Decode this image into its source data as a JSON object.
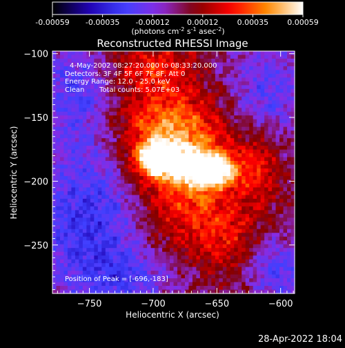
{
  "colorbar": {
    "tick_labels": [
      "-0.00059",
      "-0.00035",
      "-0.00012",
      "0.00012",
      "0.00035",
      "0.00059"
    ],
    "unit_main": "(photons cm",
    "unit_exp1": "-2",
    "unit_s": " s",
    "unit_exp2": "-1",
    "unit_asec": " asec",
    "unit_exp3": "-2",
    "unit_close": ")"
  },
  "annotations": {
    "time_range": "4-May-2002 08:27:20.000 to 08:33:20.000",
    "detectors": "Detectors: 3F 4F 5F 6F 7F 8F, Att 0",
    "energy": "Energy Range: 12.0 - 25.0 keV",
    "method": "Clean",
    "total_counts": "Total counts: 5.07E+03",
    "peak": "Position of Peak = [-696,-183]"
  },
  "timestamp": "28-Apr-2022 18:04",
  "chart_data": {
    "type": "heatmap",
    "title": "Reconstructed RHESSI Image",
    "xlabel": "Heliocentric X (arcsec)",
    "ylabel": "Heliocentric Y (arcsec)",
    "xlim": [
      -779,
      -589
    ],
    "ylim": [
      -288,
      -98
    ],
    "xticks": [
      -750,
      -700,
      -650,
      -600
    ],
    "yticks": [
      -100,
      -150,
      -200,
      -250
    ],
    "xtick_labels": [
      "−750",
      "−700",
      "−650",
      "−600"
    ],
    "ytick_labels": [
      "−100",
      "−150",
      "−200",
      "−250"
    ],
    "value_range": [
      -0.00059,
      0.00059
    ],
    "colormap": [
      "#000000",
      "#1f00b0",
      "#4040ff",
      "#8a2be2",
      "#800000",
      "#ff0000",
      "#ff8c00",
      "#ffffff"
    ],
    "peak": [
      -696,
      -183
    ],
    "sources": [
      {
        "x": -696,
        "y": -182,
        "amp": 0.00058,
        "sx": 12,
        "sy": 9
      },
      {
        "x": -655,
        "y": -191,
        "amp": 0.00058,
        "sx": 14,
        "sy": 8
      },
      {
        "x": -675,
        "y": -186,
        "amp": 0.0004,
        "sx": 30,
        "sy": 22
      },
      {
        "x": -690,
        "y": -150,
        "amp": 0.0003,
        "sx": 30,
        "sy": 18
      },
      {
        "x": -700,
        "y": -110,
        "amp": 0.00025,
        "sx": 24,
        "sy": 14
      },
      {
        "x": -670,
        "y": -230,
        "amp": 0.0002,
        "sx": 28,
        "sy": 24
      },
      {
        "x": -640,
        "y": -250,
        "amp": 0.00016,
        "sx": 16,
        "sy": 22
      },
      {
        "x": -615,
        "y": -190,
        "amp": 0.00018,
        "sx": 12,
        "sy": 22
      },
      {
        "x": -750,
        "y": -230,
        "amp": -0.0003,
        "sx": 30,
        "sy": 40
      },
      {
        "x": -760,
        "y": -130,
        "amp": -0.00022,
        "sx": 22,
        "sy": 28
      },
      {
        "x": -610,
        "y": -130,
        "amp": -0.0002,
        "sx": 22,
        "sy": 26
      },
      {
        "x": -600,
        "y": -270,
        "amp": -0.00022,
        "sx": 20,
        "sy": 18
      },
      {
        "x": -720,
        "y": -275,
        "amp": -0.00018,
        "sx": 26,
        "sy": 14
      }
    ]
  }
}
